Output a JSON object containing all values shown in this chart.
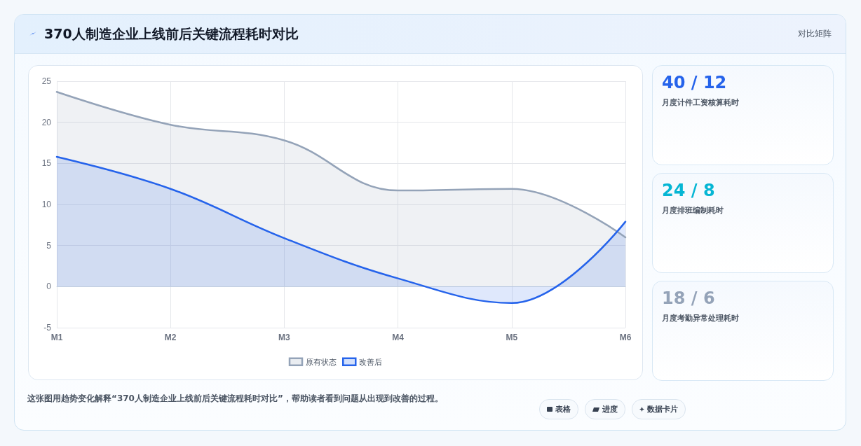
{
  "chart_data": [
    {
      "type": "area",
      "title": "370人制造企业上线前后关键流程耗时对比",
      "categories": [
        "M1",
        "M2",
        "M3",
        "M4",
        "M5",
        "M6"
      ],
      "series": [
        {
          "name": "原有状态",
          "color": "#94a3b8",
          "values": [
            23.7,
            19.7,
            17.8,
            11.7,
            11.9,
            6.0
          ]
        },
        {
          "name": "改善后",
          "color": "#2563eb",
          "values": [
            15.8,
            11.9,
            5.9,
            1.0,
            -2.0,
            7.9
          ]
        }
      ],
      "ylim": [
        -5,
        25
      ],
      "yticks": [
        -5,
        0,
        5,
        10,
        15,
        20,
        25
      ],
      "grid": true,
      "legend": "bottom",
      "marker": "none",
      "line_style": "solid",
      "annotations": [
        "对比矩阵",
        "这张图用趋势变化解释“370人制造企业上线前后关键流程耗时对比”，帮助读者看到问题从出现到改善的过程。",
        "表格",
        "进度",
        "数据卡片"
      ]
    },
    {
      "type": "other",
      "title": "40 / 12",
      "subtitle": "月度计件工资核算耗时",
      "color": "#2563eb"
    },
    {
      "type": "other",
      "title": "24 / 8",
      "subtitle": "月度排班编制耗时",
      "color": "#06b6d4"
    },
    {
      "type": "other",
      "title": "18 / 6",
      "subtitle": "月度考勤异常处理耗时",
      "color": "#94a3b8"
    }
  ]
}
